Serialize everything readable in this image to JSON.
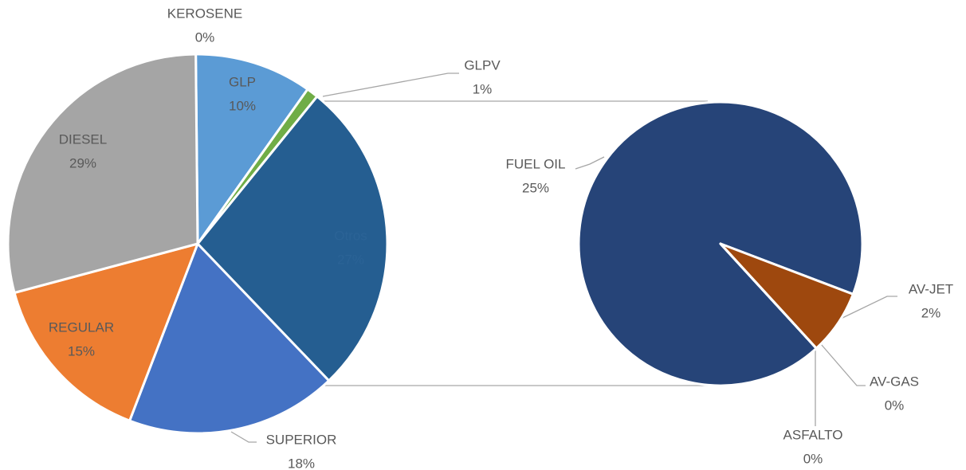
{
  "chart_data": [
    {
      "type": "pie",
      "categories": [
        "KEROSENE",
        "GLP",
        "GLPV",
        "Otros",
        "SUPERIOR",
        "REGULAR",
        "DIESEL"
      ],
      "values": [
        0,
        10,
        1,
        27,
        18,
        15,
        29
      ],
      "value_labels": [
        "0%",
        "10%",
        "1%",
        "27%",
        "18%",
        "15%",
        "29%"
      ],
      "colors": [
        "#264478",
        "#5b9bd5",
        "#70ad47",
        "#255e91",
        "#4472c4",
        "#ed7d31",
        "#a5a5a5"
      ]
    },
    {
      "type": "pie",
      "categories": [
        "FUEL OIL",
        "AV-JET",
        "AV-GAS",
        "ASFALTO"
      ],
      "values": [
        25,
        2,
        0,
        0
      ],
      "value_labels": [
        "25%",
        "2%",
        "0%",
        "0%"
      ],
      "colors": [
        "#264478",
        "#9e480e",
        "#636363",
        "#997300"
      ]
    }
  ]
}
